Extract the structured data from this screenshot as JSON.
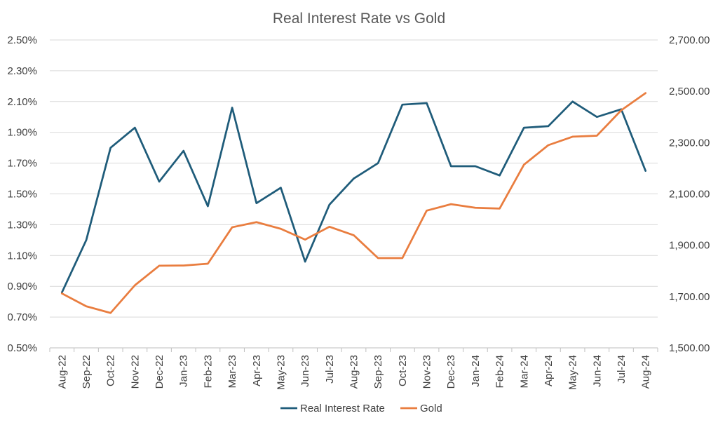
{
  "chart_data": {
    "type": "line",
    "title": "Real Interest Rate vs Gold",
    "categories": [
      "Aug-22",
      "Sep-22",
      "Oct-22",
      "Nov-22",
      "Dec-22",
      "Jan-23",
      "Feb-23",
      "Mar-23",
      "Apr-23",
      "May-23",
      "Jun-23",
      "Jul-23",
      "Aug-23",
      "Sep-23",
      "Oct-23",
      "Nov-23",
      "Dec-23",
      "Jan-24",
      "Feb-24",
      "Mar-24",
      "Apr-24",
      "May-24",
      "Jun-24",
      "Jul-24",
      "Aug-24"
    ],
    "y_left": {
      "min": 0.5,
      "max": 2.5,
      "step": 0.2,
      "tick_labels": [
        "0.50%",
        "0.70%",
        "0.90%",
        "1.10%",
        "1.30%",
        "1.50%",
        "1.70%",
        "1.90%",
        "2.10%",
        "2.30%",
        "2.50%"
      ]
    },
    "y_right": {
      "min": 1500,
      "max": 2700,
      "step": 200,
      "tick_labels": [
        "1,500.00",
        "1,700.00",
        "1,900.00",
        "2,100.00",
        "2,300.00",
        "2,500.00",
        "2,700.00"
      ]
    },
    "series": [
      {
        "name": "Real Interest Rate",
        "axis": "left",
        "color": "#1f5c7a",
        "values": [
          0.86,
          1.2,
          1.8,
          1.93,
          1.58,
          1.78,
          1.42,
          2.06,
          1.44,
          1.54,
          1.06,
          1.43,
          1.6,
          1.7,
          2.08,
          2.09,
          1.68,
          1.68,
          1.62,
          1.93,
          1.94,
          2.1,
          2.0,
          2.05,
          1.65
        ]
      },
      {
        "name": "Gold",
        "axis": "right",
        "color": "#e97d3f",
        "values": [
          1712,
          1662,
          1636,
          1744,
          1820,
          1821,
          1828,
          1970,
          1990,
          1964,
          1922,
          1972,
          1939,
          1850,
          1850,
          2035,
          2060,
          2046,
          2043,
          2214,
          2290,
          2323,
          2327,
          2426,
          2493
        ]
      }
    ],
    "grid": true,
    "legend": "bottom"
  }
}
